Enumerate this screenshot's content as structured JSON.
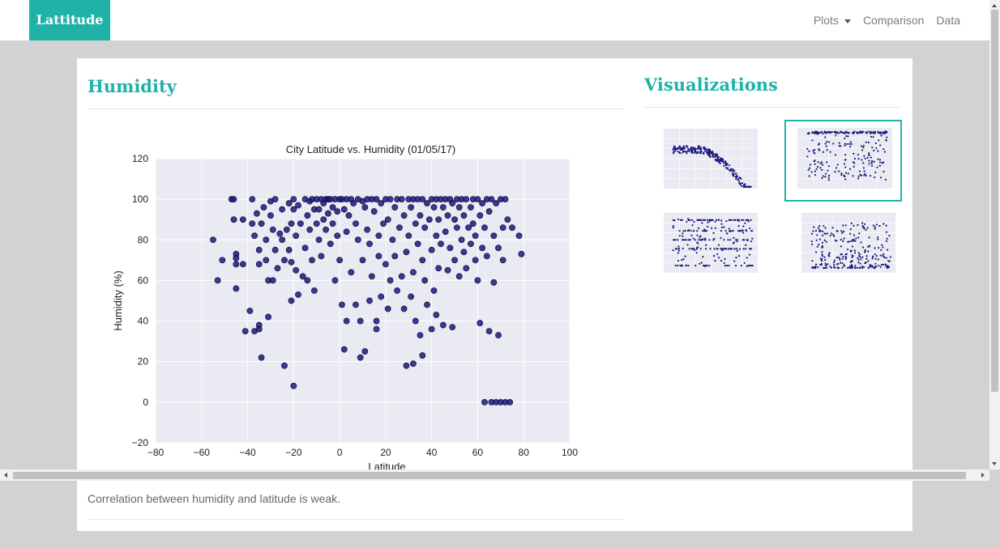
{
  "navbar": {
    "brand": "Lattitude",
    "plots_label": "Plots",
    "comparison_label": "Comparison",
    "data_label": "Data"
  },
  "main": {
    "heading": "Humidity",
    "caption": "Correlation between humidity and latitude is weak."
  },
  "sidebar": {
    "heading": "Visualizations",
    "thumbnails": [
      {
        "name": "City Latitude vs. Max Temperature (01/05/17)",
        "active": false
      },
      {
        "name": "City Latitude vs. Humidity (01/05/17)",
        "active": true
      },
      {
        "name": "City Latitude vs. Cloudiness (01/05/17)",
        "active": false
      },
      {
        "name": "City Latitude vs. Wind Speed (01/05/17)",
        "active": false
      }
    ]
  },
  "colors": {
    "accent": "#20b2a8",
    "plot_background": "#eaeaf2",
    "marker": "#1a1a7e"
  },
  "chart_data": {
    "type": "scatter",
    "title": "City Latitude vs. Humidity (01/05/17)",
    "xlabel": "Latitude",
    "ylabel": "Humidity (%)",
    "xlim": [
      -80,
      100
    ],
    "ylim": [
      -20,
      120
    ],
    "xticks": [
      "−80",
      "−60",
      "−40",
      "−20",
      "0",
      "20",
      "40",
      "60",
      "80",
      "100"
    ],
    "yticks": [
      "−20",
      "0",
      "20",
      "40",
      "60",
      "80",
      "100",
      "120"
    ],
    "grid": true,
    "points": [
      [
        -55,
        80
      ],
      [
        -53,
        60
      ],
      [
        -51,
        70
      ],
      [
        -47,
        100
      ],
      [
        -46,
        100
      ],
      [
        -46,
        90
      ],
      [
        -45,
        73
      ],
      [
        -45,
        71
      ],
      [
        -45,
        68
      ],
      [
        -45,
        56
      ],
      [
        -42,
        90
      ],
      [
        -42,
        68
      ],
      [
        -41,
        35
      ],
      [
        -39,
        45
      ],
      [
        -38,
        100
      ],
      [
        -38,
        88
      ],
      [
        -37,
        82
      ],
      [
        -37,
        35
      ],
      [
        -36,
        93
      ],
      [
        -35,
        75
      ],
      [
        -35,
        68
      ],
      [
        -35,
        38
      ],
      [
        -35,
        36
      ],
      [
        -34,
        22
      ],
      [
        -34,
        88
      ],
      [
        -33,
        96
      ],
      [
        -32,
        80
      ],
      [
        -32,
        70
      ],
      [
        -31,
        60
      ],
      [
        -31,
        42
      ],
      [
        -30,
        99
      ],
      [
        -30,
        92
      ],
      [
        -29,
        85
      ],
      [
        -29,
        60
      ],
      [
        -28,
        100
      ],
      [
        -28,
        75
      ],
      [
        -27,
        66
      ],
      [
        -26,
        83
      ],
      [
        -25,
        95
      ],
      [
        -25,
        80
      ],
      [
        -24,
        18
      ],
      [
        -24,
        70
      ],
      [
        -23,
        85
      ],
      [
        -22,
        98
      ],
      [
        -22,
        75
      ],
      [
        -21,
        88
      ],
      [
        -21,
        69
      ],
      [
        -21,
        50
      ],
      [
        -20,
        100
      ],
      [
        -20,
        8
      ],
      [
        -20,
        95
      ],
      [
        -19,
        82
      ],
      [
        -19,
        65
      ],
      [
        -18,
        97
      ],
      [
        -18,
        53
      ],
      [
        -17,
        88
      ],
      [
        -16,
        62
      ],
      [
        -15,
        100
      ],
      [
        -15,
        76
      ],
      [
        -14,
        92
      ],
      [
        -14,
        60
      ],
      [
        -13,
        99
      ],
      [
        -13,
        85
      ],
      [
        -12,
        100
      ],
      [
        -12,
        70
      ],
      [
        -11,
        95
      ],
      [
        -11,
        55
      ],
      [
        -10,
        100
      ],
      [
        -10,
        88
      ],
      [
        -9,
        80
      ],
      [
        -9,
        95
      ],
      [
        -8,
        100
      ],
      [
        -8,
        72
      ],
      [
        -7,
        98
      ],
      [
        -7,
        90
      ],
      [
        -6,
        100
      ],
      [
        -6,
        85
      ],
      [
        -5,
        100
      ],
      [
        -5,
        93
      ],
      [
        -4,
        78
      ],
      [
        -4,
        100
      ],
      [
        -3,
        96
      ],
      [
        -3,
        88
      ],
      [
        -2,
        100
      ],
      [
        -2,
        60
      ],
      [
        -1,
        94
      ],
      [
        -1,
        82
      ],
      [
        0,
        100
      ],
      [
        0,
        70
      ],
      [
        1,
        100
      ],
      [
        1,
        48
      ],
      [
        2,
        95
      ],
      [
        2,
        26
      ],
      [
        3,
        100
      ],
      [
        3,
        84
      ],
      [
        3,
        40
      ],
      [
        4,
        92
      ],
      [
        5,
        100
      ],
      [
        5,
        64
      ],
      [
        6,
        98
      ],
      [
        7,
        88
      ],
      [
        7,
        48
      ],
      [
        8,
        100
      ],
      [
        8,
        80
      ],
      [
        9,
        40
      ],
      [
        9,
        22
      ],
      [
        10,
        99
      ],
      [
        10,
        70
      ],
      [
        11,
        96
      ],
      [
        11,
        25
      ],
      [
        12,
        100
      ],
      [
        12,
        85
      ],
      [
        13,
        78
      ],
      [
        13,
        50
      ],
      [
        14,
        100
      ],
      [
        14,
        62
      ],
      [
        15,
        94
      ],
      [
        16,
        100
      ],
      [
        16,
        40
      ],
      [
        16,
        36
      ],
      [
        17,
        72
      ],
      [
        17,
        82
      ],
      [
        18,
        98
      ],
      [
        18,
        52
      ],
      [
        19,
        88
      ],
      [
        20,
        100
      ],
      [
        20,
        68
      ],
      [
        21,
        90
      ],
      [
        21,
        46
      ],
      [
        22,
        100
      ],
      [
        22,
        60
      ],
      [
        23,
        80
      ],
      [
        24,
        96
      ],
      [
        24,
        72
      ],
      [
        25,
        100
      ],
      [
        25,
        55
      ],
      [
        26,
        86
      ],
      [
        27,
        100
      ],
      [
        27,
        62
      ],
      [
        28,
        92
      ],
      [
        28,
        46
      ],
      [
        29,
        74
      ],
      [
        29,
        18
      ],
      [
        30,
        100
      ],
      [
        30,
        82
      ],
      [
        31,
        96
      ],
      [
        31,
        52
      ],
      [
        32,
        100
      ],
      [
        32,
        64
      ],
      [
        32,
        19
      ],
      [
        33,
        88
      ],
      [
        33,
        40
      ],
      [
        34,
        100
      ],
      [
        34,
        78
      ],
      [
        35,
        92
      ],
      [
        35,
        33
      ],
      [
        36,
        100
      ],
      [
        36,
        70
      ],
      [
        36,
        23
      ],
      [
        37,
        86
      ],
      [
        37,
        60
      ],
      [
        38,
        98
      ],
      [
        38,
        48
      ],
      [
        39,
        90
      ],
      [
        40,
        100
      ],
      [
        40,
        75
      ],
      [
        40,
        36
      ],
      [
        41,
        96
      ],
      [
        41,
        55
      ],
      [
        42,
        100
      ],
      [
        42,
        82
      ],
      [
        42,
        43
      ],
      [
        43,
        90
      ],
      [
        43,
        66
      ],
      [
        44,
        100
      ],
      [
        44,
        78
      ],
      [
        45,
        96
      ],
      [
        45,
        38
      ],
      [
        46,
        100
      ],
      [
        46,
        84
      ],
      [
        47,
        92
      ],
      [
        47,
        65
      ],
      [
        48,
        100
      ],
      [
        48,
        76
      ],
      [
        49,
        98
      ],
      [
        49,
        37
      ],
      [
        50,
        90
      ],
      [
        50,
        70
      ],
      [
        51,
        100
      ],
      [
        51,
        86
      ],
      [
        52,
        96
      ],
      [
        52,
        62
      ],
      [
        53,
        100
      ],
      [
        53,
        80
      ],
      [
        54,
        92
      ],
      [
        54,
        74
      ],
      [
        55,
        100
      ],
      [
        55,
        66
      ],
      [
        56,
        86
      ],
      [
        57,
        96
      ],
      [
        57,
        78
      ],
      [
        58,
        100
      ],
      [
        58,
        88
      ],
      [
        59,
        82
      ],
      [
        59,
        70
      ],
      [
        60,
        100
      ],
      [
        60,
        60
      ],
      [
        61,
        92
      ],
      [
        61,
        39
      ],
      [
        62,
        98
      ],
      [
        62,
        76
      ],
      [
        63,
        86
      ],
      [
        63,
        0
      ],
      [
        64,
        100
      ],
      [
        64,
        72
      ],
      [
        65,
        94
      ],
      [
        65,
        35
      ],
      [
        66,
        100
      ],
      [
        66,
        0
      ],
      [
        67,
        82
      ],
      [
        67,
        59
      ],
      [
        68,
        98
      ],
      [
        68,
        0
      ],
      [
        69,
        76
      ],
      [
        69,
        33
      ],
      [
        70,
        100
      ],
      [
        70,
        0
      ],
      [
        71,
        86
      ],
      [
        71,
        70
      ],
      [
        72,
        100
      ],
      [
        72,
        0
      ],
      [
        73,
        90
      ],
      [
        74,
        0
      ],
      [
        75,
        86
      ],
      [
        78,
        82
      ],
      [
        79,
        73
      ]
    ]
  }
}
